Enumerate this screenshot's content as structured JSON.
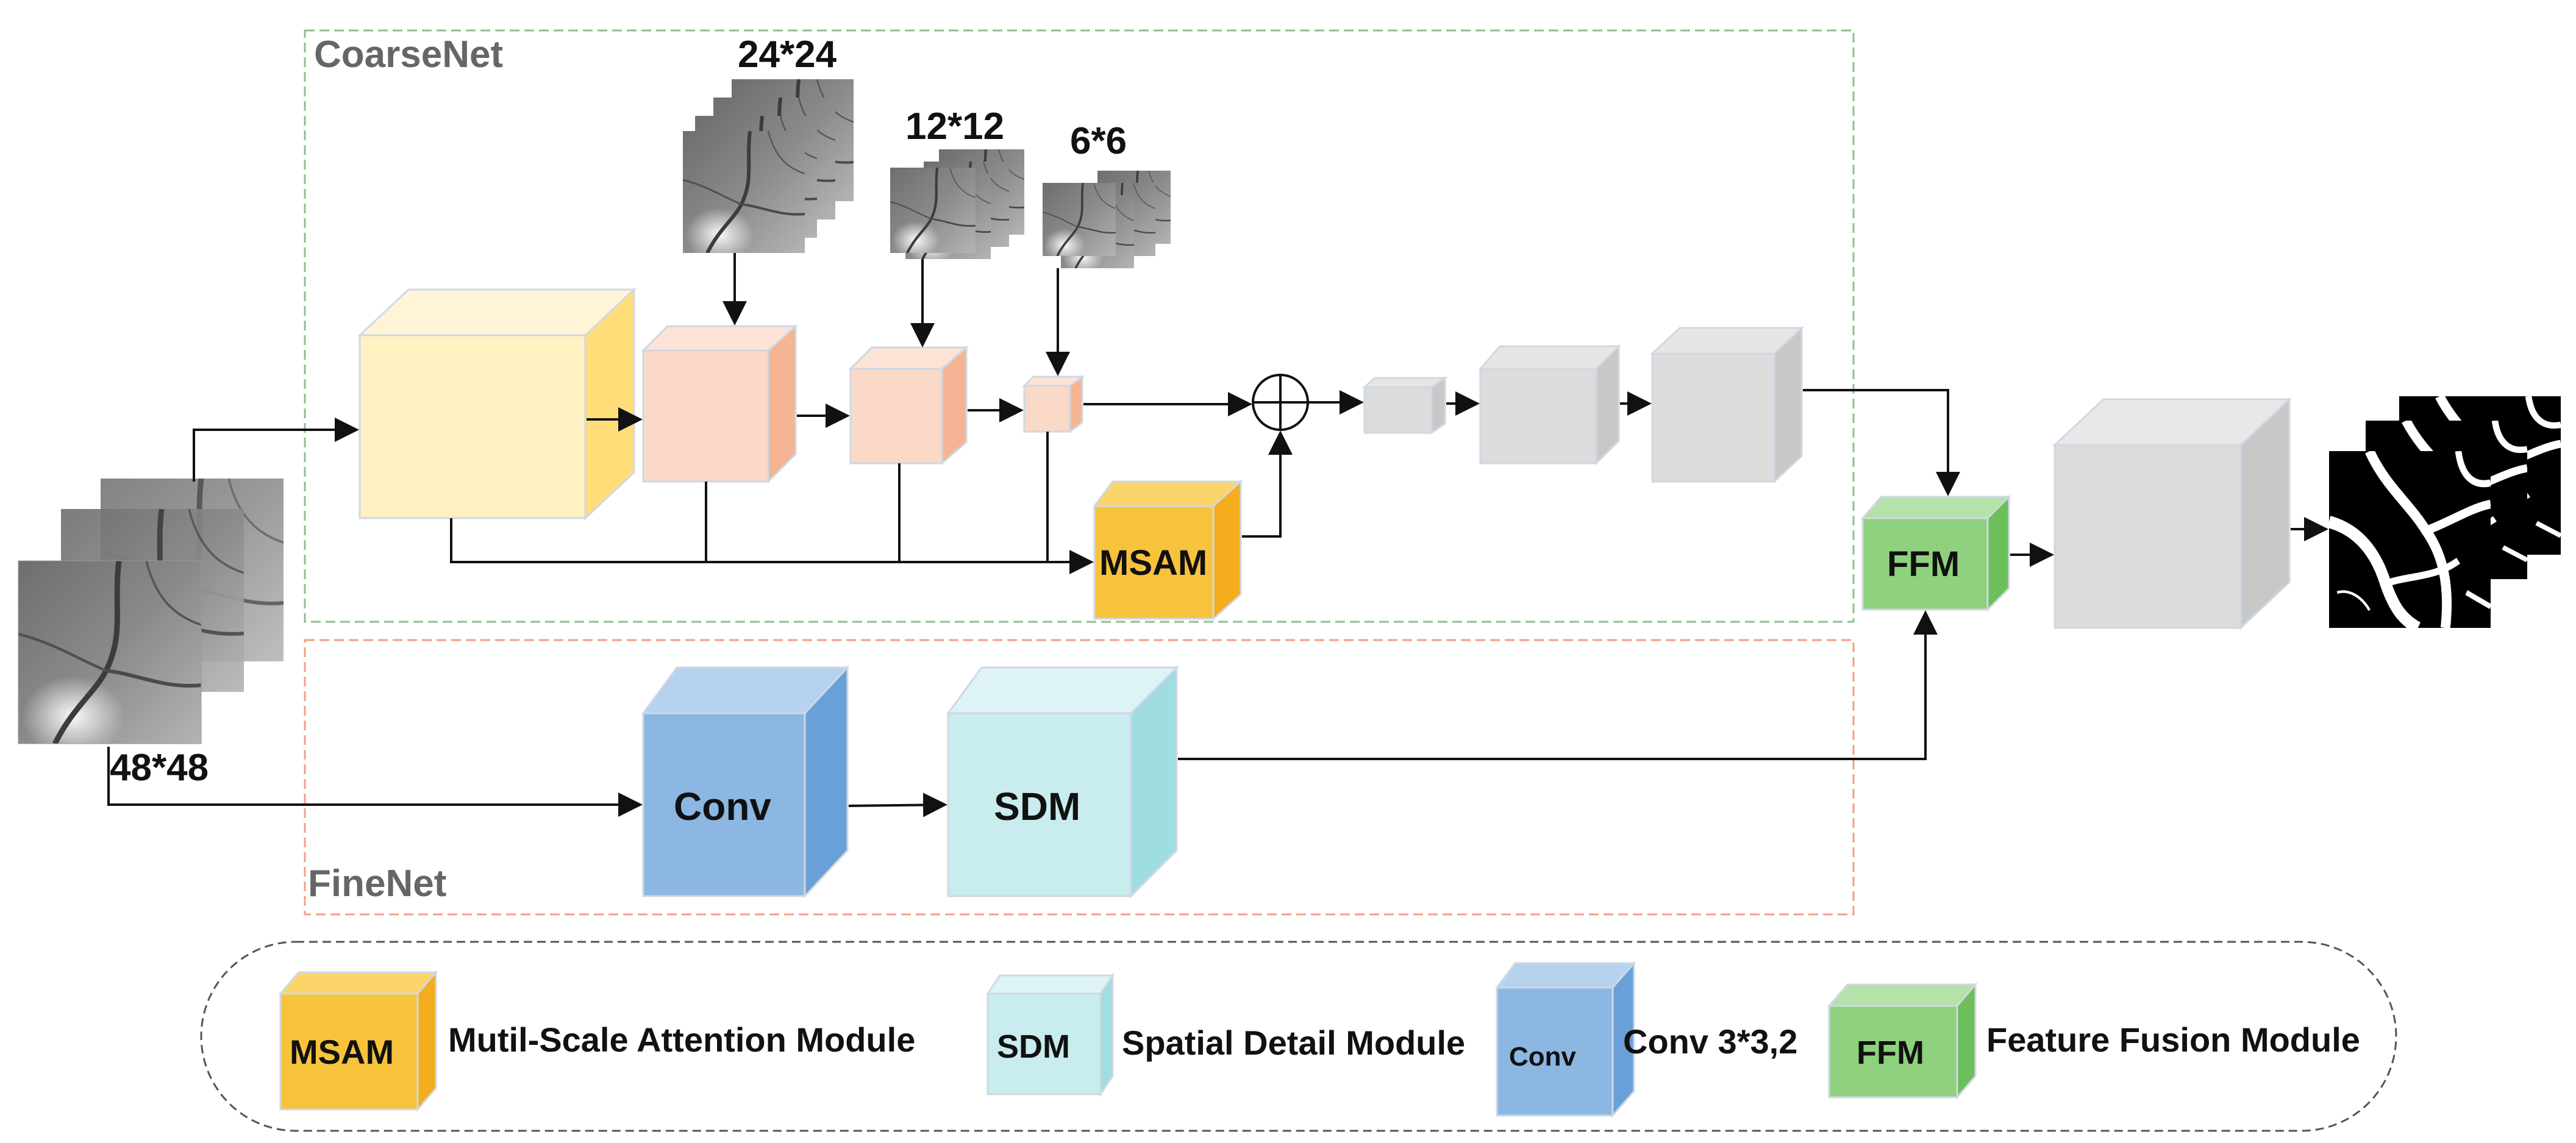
{
  "regions": {
    "coarse_label": "CoarseNet",
    "fine_label": "FineNet"
  },
  "sizes": {
    "input": "48*48",
    "s24": "24*24",
    "s12": "12*12",
    "s6": "6*6"
  },
  "modules": {
    "msam": "MSAM",
    "conv": "Conv",
    "sdm": "SDM",
    "ffm": "FFM"
  },
  "legend": {
    "msam_box": "MSAM",
    "msam_desc": "Mutil-Scale Attention Module",
    "sdm_box": "SDM",
    "sdm_desc": "Spatial Detail Module",
    "conv_box": "Conv",
    "conv_desc": "Conv 3*3,2",
    "ffm_box": "FFM",
    "ffm_desc": "Feature Fusion Module"
  },
  "colors": {
    "coarse_border": "#8fbf8f",
    "fine_border": "#f0a080",
    "yellow": "#fff1c2",
    "yellow_side": "#ffde7a",
    "peach": "#fbd9c7",
    "peach_side": "#f5b594",
    "gray": "#dcdcdc",
    "gray_side": "#c8c8c8",
    "msam": "#f8c33c",
    "blue": "#8bb7e2",
    "blue_side": "#6aa0d8",
    "cyan": "#c9ecee",
    "cyan_side": "#a0dde2",
    "green": "#8fd17e",
    "green_side": "#6cbf5a"
  }
}
